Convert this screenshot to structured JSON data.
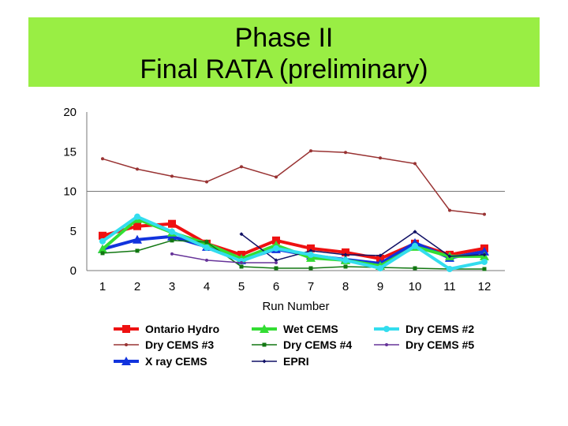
{
  "header": {
    "title_line1": "Phase II",
    "title_line2": "Final RATA (preliminary)",
    "band_color": "#99ee44"
  },
  "chart_data": {
    "type": "line",
    "title": "",
    "xlabel": "Run Number",
    "ylabel": "",
    "x": [
      1,
      2,
      3,
      4,
      5,
      6,
      7,
      8,
      9,
      10,
      11,
      12
    ],
    "ylim": [
      0,
      20
    ],
    "yticks": [
      0,
      5,
      10,
      15,
      20
    ],
    "grid": false,
    "reference_line": 10,
    "legend_position": "bottom",
    "series": [
      {
        "name": "Ontario Hydro",
        "color": "#ee1111",
        "marker": "square",
        "width": 4,
        "values": [
          4.4,
          5.6,
          5.9,
          3.4,
          2.0,
          3.8,
          2.8,
          2.3,
          1.5,
          3.4,
          2.0,
          2.8
        ]
      },
      {
        "name": "Dry CEMS #3",
        "color": "#993333",
        "marker": "star",
        "width": 1.5,
        "values": [
          14.1,
          12.8,
          11.9,
          11.2,
          13.1,
          11.8,
          15.1,
          14.9,
          14.2,
          13.5,
          7.6,
          7.1
        ]
      },
      {
        "name": "X ray CEMS",
        "color": "#1133dd",
        "marker": "triangle",
        "width": 4,
        "values": [
          2.7,
          3.9,
          4.3,
          3.0,
          1.3,
          2.7,
          1.9,
          1.4,
          0.9,
          3.5,
          1.6,
          2.4
        ]
      },
      {
        "name": "Wet CEMS",
        "color": "#33dd33",
        "marker": "triangle",
        "width": 4,
        "values": [
          2.7,
          6.5,
          4.8,
          3.4,
          1.5,
          3.2,
          1.6,
          1.3,
          0.6,
          3.0,
          1.8,
          1.8
        ]
      },
      {
        "name": "Dry CEMS #4",
        "color": "#117711",
        "marker": "square",
        "width": 1.5,
        "values": [
          2.2,
          2.5,
          3.8,
          3.6,
          0.5,
          0.3,
          0.3,
          0.5,
          0.4,
          0.3,
          0.2,
          0.2
        ]
      },
      {
        "name": "EPRI",
        "color": "#111166",
        "marker": "diamond",
        "width": 1.5,
        "values": [
          null,
          null,
          null,
          null,
          4.6,
          1.3,
          2.5,
          2.0,
          1.9,
          4.9,
          1.8,
          2.0
        ]
      },
      {
        "name": "Dry CEMS #2",
        "color": "#33ddee",
        "marker": "star",
        "width": 4,
        "values": [
          3.7,
          6.8,
          4.9,
          2.9,
          1.2,
          2.8,
          2.0,
          1.3,
          0.3,
          3.1,
          0.2,
          1.1
        ]
      },
      {
        "name": "Dry CEMS #5",
        "color": "#663399",
        "marker": "star",
        "width": 1.5,
        "values": [
          null,
          null,
          2.1,
          1.3,
          1.0,
          1.0,
          null,
          null,
          null,
          null,
          null,
          null
        ]
      }
    ]
  }
}
